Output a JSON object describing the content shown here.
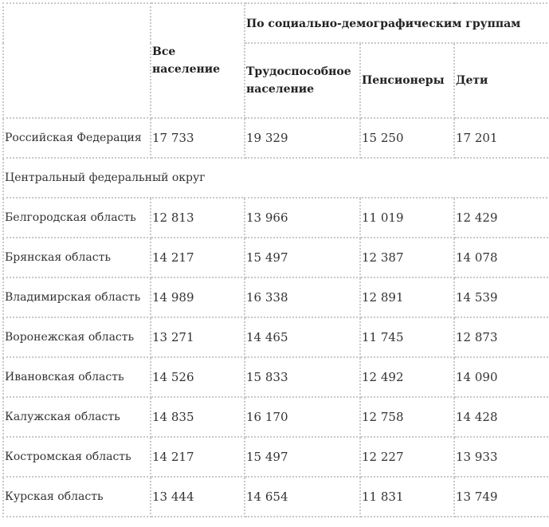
{
  "table": {
    "header": {
      "all_population": "Все население",
      "group_title": "По социально-демографическим группам",
      "working_age": "Трудоспособное население",
      "pensioners": "Пенсионеры",
      "children": "Дети"
    },
    "rows": [
      {
        "region": "Российская Федерация",
        "all": "17 733",
        "working": "19 329",
        "pensioners": "15 250",
        "children": "17 201"
      },
      {
        "section": "Центральный федеральный округ"
      },
      {
        "region": "Белгородская область",
        "all": "12 813",
        "working": "13 966",
        "pensioners": "11 019",
        "children": "12 429"
      },
      {
        "region": "Брянская область",
        "all": "14 217",
        "working": "15 497",
        "pensioners": "12 387",
        "children": "14 078"
      },
      {
        "region": "Владимирская область",
        "all": "14 989",
        "working": "16 338",
        "pensioners": "12 891",
        "children": "14 539"
      },
      {
        "region": "Воронежская область",
        "all": "13 271",
        "working": "14 465",
        "pensioners": "11 745",
        "children": "12 873"
      },
      {
        "region": "Ивановская область",
        "all": "14 526",
        "working": "15 833",
        "pensioners": "12 492",
        "children": "14 090"
      },
      {
        "region": "Калужская область",
        "all": "14 835",
        "working": "16 170",
        "pensioners": "12 758",
        "children": "14 428"
      },
      {
        "region": "Костромская область",
        "all": "14 217",
        "working": "15 497",
        "pensioners": "12 227",
        "children": "13 933"
      },
      {
        "region": "Курская область",
        "all": "13 444",
        "working": "14 654",
        "pensioners": "11 831",
        "children": "13 749"
      }
    ]
  }
}
